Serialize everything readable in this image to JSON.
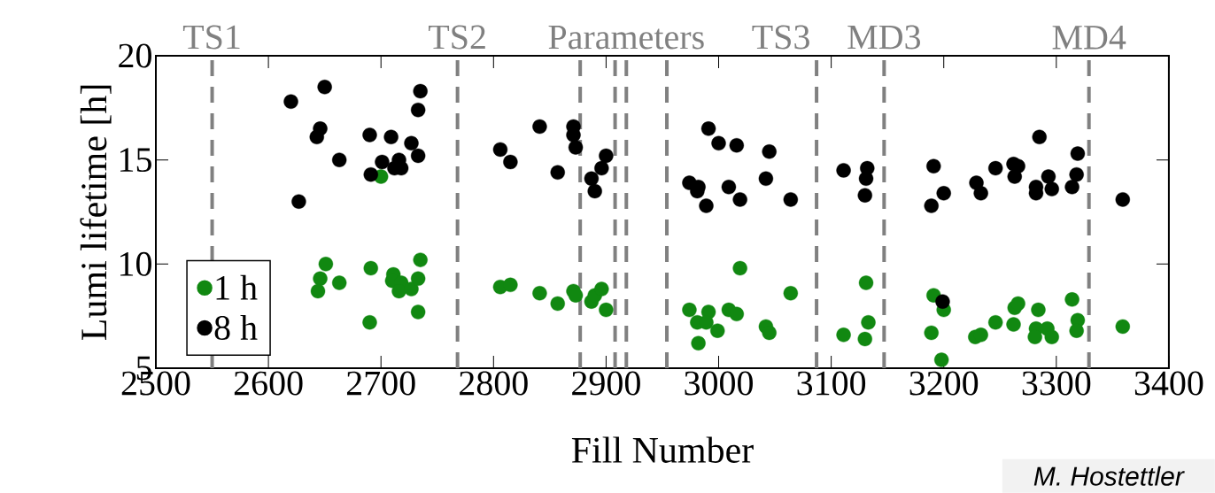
{
  "chart_data": {
    "type": "scatter",
    "xlabel": "Fill Number",
    "ylabel": "Lumi lifetime [h]",
    "xlim": [
      2500,
      3400
    ],
    "ylim": [
      5,
      20
    ],
    "xticks": [
      2500,
      2600,
      2700,
      2800,
      2900,
      3000,
      3100,
      3200,
      3300,
      3400
    ],
    "yticks": [
      5,
      10,
      15,
      20
    ],
    "grid": false,
    "legend": "bottom left",
    "marker": "circle",
    "series": [
      {
        "name": "1 h",
        "color": "#118811",
        "x": [
          2700,
          2651,
          2646,
          2644,
          2663,
          2691,
          2690,
          2711,
          2710,
          2718,
          2716,
          2727,
          2733,
          2735,
          2733,
          2806,
          2815,
          2841,
          2857,
          2871,
          2873,
          2887,
          2890,
          2896,
          2900,
          2974,
          2991,
          2981,
          2989,
          2999,
          2982,
          3009,
          3016,
          3019,
          3042,
          3045,
          3064,
          3131,
          3133,
          3130,
          3111,
          3191,
          3200,
          3189,
          3198,
          3228,
          3233,
          3246,
          3262,
          3263,
          3266,
          3284,
          3282,
          3281,
          3292,
          3296,
          3314,
          3319,
          3318,
          3359
        ],
        "values": [
          14.2,
          10.0,
          9.3,
          8.7,
          9.1,
          9.8,
          7.2,
          9.5,
          9.2,
          9.1,
          8.7,
          8.8,
          9.3,
          10.2,
          7.7,
          8.9,
          9.0,
          8.6,
          8.1,
          8.7,
          8.5,
          8.2,
          8.5,
          8.8,
          7.8,
          7.8,
          7.7,
          7.2,
          7.2,
          6.8,
          6.2,
          7.8,
          7.6,
          9.8,
          7.0,
          6.7,
          8.6,
          9.1,
          7.2,
          6.4,
          6.6,
          8.5,
          7.8,
          6.7,
          5.4,
          6.5,
          6.6,
          7.2,
          7.1,
          7.9,
          8.1,
          7.8,
          6.9,
          6.5,
          6.9,
          6.5,
          8.3,
          7.3,
          6.8,
          7.0
        ]
      },
      {
        "name": "8 h",
        "color": "#000000",
        "x": [
          2620,
          2650,
          2627,
          2646,
          2643,
          2663,
          2690,
          2709,
          2691,
          2701,
          2716,
          2712,
          2718,
          2727,
          2733,
          2733,
          2735,
          2841,
          2871,
          2871,
          2873,
          2806,
          2815,
          2857,
          2887,
          2890,
          2896,
          2900,
          2991,
          3000,
          3016,
          3045,
          2974,
          2982,
          2981,
          2989,
          3009,
          3019,
          3042,
          3064,
          3111,
          3132,
          3131,
          3130,
          3191,
          3189,
          3200,
          3229,
          3233,
          3246,
          3262,
          3266,
          3263,
          3285,
          3282,
          3282,
          3293,
          3296,
          3314,
          3318,
          3319,
          3359,
          3199
        ],
        "values": [
          17.8,
          18.5,
          13.0,
          16.5,
          16.1,
          15.0,
          16.2,
          16.1,
          14.3,
          14.9,
          15.0,
          14.6,
          14.6,
          15.8,
          15.2,
          17.4,
          18.3,
          16.6,
          16.6,
          16.2,
          15.6,
          15.5,
          14.9,
          14.4,
          14.1,
          13.5,
          14.6,
          15.2,
          16.5,
          15.8,
          15.7,
          15.4,
          13.9,
          13.7,
          13.5,
          12.8,
          13.7,
          13.1,
          14.1,
          13.1,
          14.5,
          14.6,
          14.1,
          13.3,
          14.7,
          12.8,
          13.4,
          13.9,
          13.4,
          14.6,
          14.8,
          14.7,
          14.2,
          16.1,
          13.7,
          13.4,
          14.2,
          13.6,
          13.7,
          14.3,
          15.3,
          13.1,
          8.2
        ]
      }
    ],
    "ref_lines": [
      {
        "axis": "x",
        "value": 2550,
        "label": "TS1",
        "color": "#808080",
        "line_style": "dashed"
      },
      {
        "axis": "x",
        "value": 2768,
        "label": "TS2",
        "color": "#808080",
        "line_style": "dashed"
      },
      {
        "axis": "x",
        "value": 2877,
        "color": "#808080",
        "line_style": "dashed"
      },
      {
        "axis": "x",
        "value": 2908,
        "color": "#808080",
        "line_style": "dashed"
      },
      {
        "axis": "x",
        "value": 2918,
        "label": "Parameters",
        "color": "#808080",
        "line_style": "dashed"
      },
      {
        "axis": "x",
        "value": 2954,
        "color": "#808080",
        "line_style": "dashed"
      },
      {
        "axis": "x",
        "value": 3087,
        "label": "TS3",
        "color": "#808080",
        "line_style": "dashed"
      },
      {
        "axis": "x",
        "value": 3147,
        "label": "MD3",
        "color": "#808080",
        "line_style": "dashed"
      },
      {
        "axis": "x",
        "value": 3329,
        "label": "MD4",
        "color": "#808080",
        "line_style": "dashed"
      }
    ],
    "annotations": [
      "M. Hostettler"
    ]
  }
}
